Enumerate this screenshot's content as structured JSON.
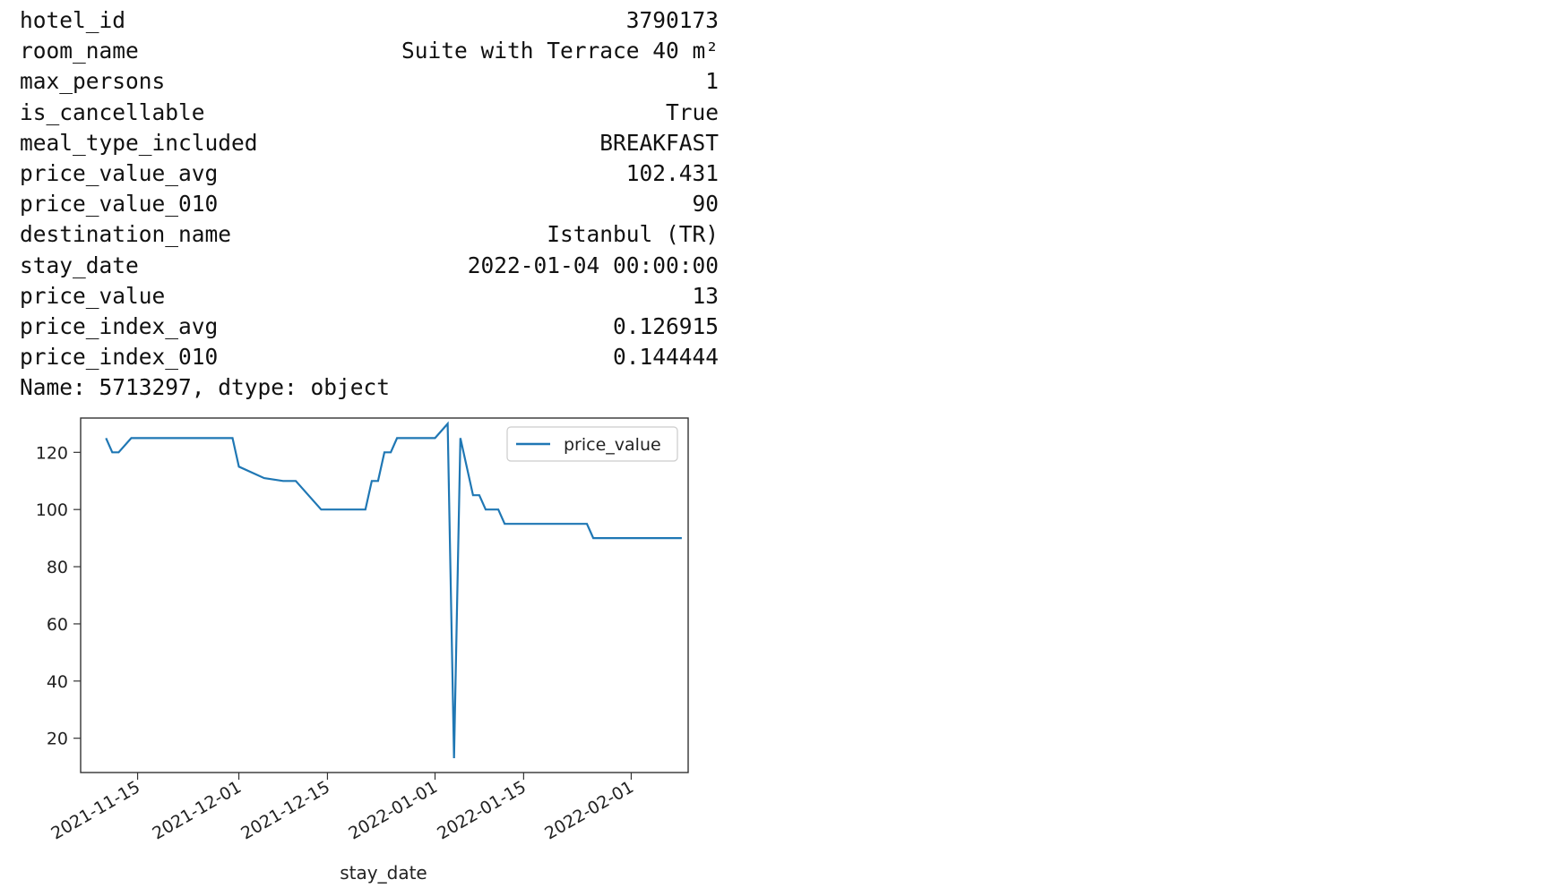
{
  "series": {
    "rows": [
      {
        "key": "hotel_id",
        "value": "3790173"
      },
      {
        "key": "room_name",
        "value": "Suite with Terrace 40 m²"
      },
      {
        "key": "max_persons",
        "value": "1"
      },
      {
        "key": "is_cancellable",
        "value": "True"
      },
      {
        "key": "meal_type_included",
        "value": "BREAKFAST"
      },
      {
        "key": "price_value_avg",
        "value": "102.431"
      },
      {
        "key": "price_value_010",
        "value": "90"
      },
      {
        "key": "destination_name",
        "value": "Istanbul (TR)"
      },
      {
        "key": "stay_date",
        "value": "2022-01-04 00:00:00"
      },
      {
        "key": "price_value",
        "value": "13"
      },
      {
        "key": "price_index_avg",
        "value": "0.126915"
      },
      {
        "key": "price_index_010",
        "value": "0.144444"
      }
    ],
    "footer": "Name: 5713297, dtype: object"
  },
  "chart_data": {
    "type": "line",
    "xlabel": "stay_date",
    "ylabel": "",
    "legend": {
      "location": "upper right"
    },
    "x_ticks": [
      "2021-11-15",
      "2021-12-01",
      "2021-12-15",
      "2022-01-01",
      "2022-01-15",
      "2022-02-01"
    ],
    "y_ticks": [
      20,
      40,
      60,
      80,
      100,
      120
    ],
    "xlim": [
      "2021-11-06",
      "2022-02-10"
    ],
    "ylim": [
      8,
      132
    ],
    "series": [
      {
        "name": "price_value",
        "color": "#1f77b4",
        "points": [
          {
            "x": "2021-11-10",
            "y": 125
          },
          {
            "x": "2021-11-11",
            "y": 120
          },
          {
            "x": "2021-11-12",
            "y": 120
          },
          {
            "x": "2021-11-14",
            "y": 125
          },
          {
            "x": "2021-11-30",
            "y": 125
          },
          {
            "x": "2021-12-01",
            "y": 115
          },
          {
            "x": "2021-12-05",
            "y": 111
          },
          {
            "x": "2021-12-08",
            "y": 110
          },
          {
            "x": "2021-12-10",
            "y": 110
          },
          {
            "x": "2021-12-14",
            "y": 100
          },
          {
            "x": "2021-12-21",
            "y": 100
          },
          {
            "x": "2021-12-22",
            "y": 110
          },
          {
            "x": "2021-12-23",
            "y": 110
          },
          {
            "x": "2021-12-24",
            "y": 120
          },
          {
            "x": "2021-12-25",
            "y": 120
          },
          {
            "x": "2021-12-26",
            "y": 125
          },
          {
            "x": "2022-01-01",
            "y": 125
          },
          {
            "x": "2022-01-03",
            "y": 130
          },
          {
            "x": "2022-01-04",
            "y": 13
          },
          {
            "x": "2022-01-05",
            "y": 125
          },
          {
            "x": "2022-01-07",
            "y": 105
          },
          {
            "x": "2022-01-08",
            "y": 105
          },
          {
            "x": "2022-01-09",
            "y": 100
          },
          {
            "x": "2022-01-11",
            "y": 100
          },
          {
            "x": "2022-01-12",
            "y": 95
          },
          {
            "x": "2022-01-25",
            "y": 95
          },
          {
            "x": "2022-01-26",
            "y": 90
          },
          {
            "x": "2022-02-09",
            "y": 90
          }
        ]
      }
    ]
  }
}
